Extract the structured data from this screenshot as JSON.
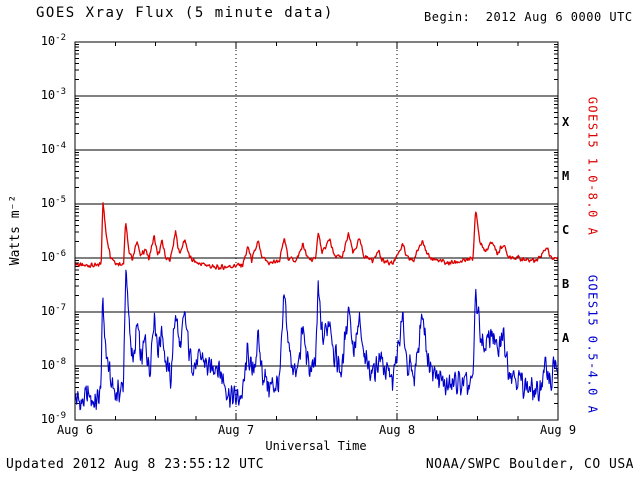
{
  "title": "GOES Xray Flux (5 minute data)",
  "begin_label": "Begin:  2012 Aug 6 0000 UTC",
  "updated": "Updated 2012 Aug 8 23:55:12 UTC",
  "credit": "NOAA/SWPC Boulder, CO USA",
  "colors": {
    "long_channel": "#dd0000",
    "short_channel": "#0000cc",
    "axis": "#000000",
    "background": "#ffffff"
  },
  "chart_data": {
    "type": "line",
    "title": "GOES Xray Flux (5 minute data)",
    "xlabel": "Universal Time",
    "ylabel": "Watts m⁻²",
    "begin": "2012 Aug 6 0000 UTC",
    "x_ticks": [
      "Aug 6",
      "Aug 7",
      "Aug 8",
      "Aug 9"
    ],
    "x_range_hours": [
      0,
      72
    ],
    "y_exponents": [
      -2,
      -3,
      -4,
      -5,
      -6,
      -7,
      -8,
      -9
    ],
    "ylim": [
      1e-09,
      0.01
    ],
    "grid": true,
    "flare_classes": [
      {
        "label": "X",
        "center_exp": -3.5
      },
      {
        "label": "M",
        "center_exp": -4.5
      },
      {
        "label": "C",
        "center_exp": -5.5
      },
      {
        "label": "B",
        "center_exp": -6.5
      },
      {
        "label": "A",
        "center_exp": -7.5
      }
    ],
    "series": [
      {
        "name": "GOES15 1.0-8.0 A",
        "color": "#dd0000",
        "noise_log10": 0.05,
        "points": [
          [
            0,
            8e-07
          ],
          [
            1.2,
            7e-07
          ],
          [
            2.2,
            7.5e-07
          ],
          [
            3.2,
            7e-07
          ],
          [
            3.9,
            8e-07
          ],
          [
            4.15,
            1.2e-05
          ],
          [
            4.6,
            3e-06
          ],
          [
            5.3,
            1.1e-06
          ],
          [
            6.2,
            8e-07
          ],
          [
            7.25,
            8e-07
          ],
          [
            7.55,
            5e-06
          ],
          [
            7.95,
            1.5e-06
          ],
          [
            8.6,
            9.5e-07
          ],
          [
            9.3,
            2.2e-06
          ],
          [
            9.75,
            1.05e-06
          ],
          [
            10.5,
            1.5e-06
          ],
          [
            11.0,
            9.5e-07
          ],
          [
            11.8,
            2.5e-06
          ],
          [
            12.3,
            1.1e-06
          ],
          [
            13.0,
            2e-06
          ],
          [
            13.55,
            1e-06
          ],
          [
            14.2,
            9e-07
          ],
          [
            15.0,
            3e-06
          ],
          [
            15.55,
            1.2e-06
          ],
          [
            16.4,
            2.2e-06
          ],
          [
            17.1,
            1e-06
          ],
          [
            18.2,
            8e-07
          ],
          [
            19.5,
            7.5e-07
          ],
          [
            21.0,
            6.5e-07
          ],
          [
            23.0,
            7e-07
          ],
          [
            25.0,
            7.5e-07
          ],
          [
            25.8,
            1.6e-06
          ],
          [
            26.35,
            9e-07
          ],
          [
            27.3,
            2e-06
          ],
          [
            27.85,
            1e-06
          ],
          [
            29.0,
            8e-07
          ],
          [
            30.5,
            9e-07
          ],
          [
            31.2,
            2.3e-06
          ],
          [
            31.8,
            1e-06
          ],
          [
            33.0,
            9e-07
          ],
          [
            34.0,
            1.8e-06
          ],
          [
            34.6,
            1e-06
          ],
          [
            35.8,
            9e-07
          ],
          [
            36.25,
            3e-06
          ],
          [
            36.85,
            1.2e-06
          ],
          [
            38.0,
            2.3e-06
          ],
          [
            38.6,
            1.1e-06
          ],
          [
            39.8,
            1e-06
          ],
          [
            40.8,
            2.8e-06
          ],
          [
            41.45,
            1.2e-06
          ],
          [
            42.4,
            2.2e-06
          ],
          [
            43.05,
            1.1e-06
          ],
          [
            44.5,
            9e-07
          ],
          [
            45.2,
            1.5e-06
          ],
          [
            45.7,
            9e-07
          ],
          [
            46.8,
            8e-07
          ],
          [
            47.5,
            8.5e-07
          ],
          [
            48.85,
            1.8e-06
          ],
          [
            49.45,
            1e-06
          ],
          [
            50.5,
            9e-07
          ],
          [
            51.8,
            2.3e-06
          ],
          [
            52.45,
            1.1e-06
          ],
          [
            54.0,
            9e-07
          ],
          [
            55.5,
            8e-07
          ],
          [
            57.0,
            8.5e-07
          ],
          [
            58.5,
            9e-07
          ],
          [
            59.35,
            1e-06
          ],
          [
            59.7,
            8e-06
          ],
          [
            60.35,
            2e-06
          ],
          [
            61.2,
            1.3e-06
          ],
          [
            62.2,
            2e-06
          ],
          [
            63.0,
            1.2e-06
          ],
          [
            63.8,
            1.8e-06
          ],
          [
            64.55,
            1.1e-06
          ],
          [
            66.0,
            1e-06
          ],
          [
            67.5,
            9e-07
          ],
          [
            69.0,
            9.5e-07
          ],
          [
            70.3,
            1.6e-06
          ],
          [
            70.95,
            1e-06
          ],
          [
            72,
            1e-06
          ]
        ]
      },
      {
        "name": "GOES15 0.5-4.0 A",
        "color": "#0000cc",
        "noise_log10": 0.25,
        "points": [
          [
            0,
            2.5e-09
          ],
          [
            1,
            2e-09
          ],
          [
            2,
            3e-09
          ],
          [
            3,
            2e-09
          ],
          [
            3.8,
            3e-09
          ],
          [
            4.15,
            1.5e-07
          ],
          [
            4.6,
            2e-08
          ],
          [
            5.3,
            5e-09
          ],
          [
            6.2,
            3e-09
          ],
          [
            7.2,
            4e-09
          ],
          [
            7.55,
            6e-07
          ],
          [
            8.0,
            8e-08
          ],
          [
            8.7,
            1e-08
          ],
          [
            9.3,
            6e-08
          ],
          [
            9.8,
            1.2e-08
          ],
          [
            10.5,
            3e-08
          ],
          [
            11.1,
            8e-09
          ],
          [
            11.8,
            1e-07
          ],
          [
            12.4,
            2e-08
          ],
          [
            13,
            5e-08
          ],
          [
            13.6,
            1e-08
          ],
          [
            14.3,
            6e-09
          ],
          [
            15,
            1.2e-07
          ],
          [
            15.6,
            2e-08
          ],
          [
            16.4,
            8e-08
          ],
          [
            17.1,
            1.5e-08
          ],
          [
            18,
            1e-08
          ],
          [
            19,
            1.5e-08
          ],
          [
            20,
            8e-09
          ],
          [
            21,
            1.2e-08
          ],
          [
            22,
            6e-09
          ],
          [
            23,
            3e-09
          ],
          [
            24,
            2.5e-09
          ],
          [
            25,
            3e-09
          ],
          [
            25.8,
            2e-08
          ],
          [
            26.4,
            6e-09
          ],
          [
            27.3,
            3e-08
          ],
          [
            27.9,
            8e-09
          ],
          [
            29,
            4e-09
          ],
          [
            30.5,
            5e-09
          ],
          [
            31.2,
            2e-07
          ],
          [
            31.9,
            2e-08
          ],
          [
            33,
            6e-09
          ],
          [
            34,
            5e-08
          ],
          [
            34.7,
            1e-08
          ],
          [
            35.8,
            8e-09
          ],
          [
            36.25,
            2.5e-07
          ],
          [
            36.9,
            3e-08
          ],
          [
            38,
            8e-08
          ],
          [
            38.7,
            1.5e-08
          ],
          [
            39.8,
            8e-09
          ],
          [
            40.8,
            1.5e-07
          ],
          [
            41.5,
            2e-08
          ],
          [
            42.4,
            6e-08
          ],
          [
            43.1,
            1.2e-08
          ],
          [
            44.5,
            8e-09
          ],
          [
            45.5,
            1.5e-08
          ],
          [
            46.5,
            7e-09
          ],
          [
            47.5,
            6e-09
          ],
          [
            48.85,
            7e-08
          ],
          [
            49.5,
            1.2e-08
          ],
          [
            50.5,
            6e-09
          ],
          [
            51.8,
            1e-07
          ],
          [
            52.5,
            1.5e-08
          ],
          [
            54,
            6e-09
          ],
          [
            55.5,
            4e-09
          ],
          [
            57,
            5e-09
          ],
          [
            58.5,
            4e-09
          ],
          [
            59.35,
            5e-09
          ],
          [
            59.7,
            2.5e-07
          ],
          [
            60.4,
            4e-08
          ],
          [
            61.2,
            2e-08
          ],
          [
            62.2,
            5e-08
          ],
          [
            63,
            1.5e-08
          ],
          [
            63.8,
            4e-08
          ],
          [
            64.6,
            1e-08
          ],
          [
            66,
            6e-09
          ],
          [
            67.5,
            4e-09
          ],
          [
            69,
            3e-09
          ],
          [
            70.3,
            1e-08
          ],
          [
            71,
            5e-09
          ],
          [
            71.6,
            1.5e-08
          ],
          [
            72,
            4e-09
          ]
        ]
      }
    ]
  }
}
